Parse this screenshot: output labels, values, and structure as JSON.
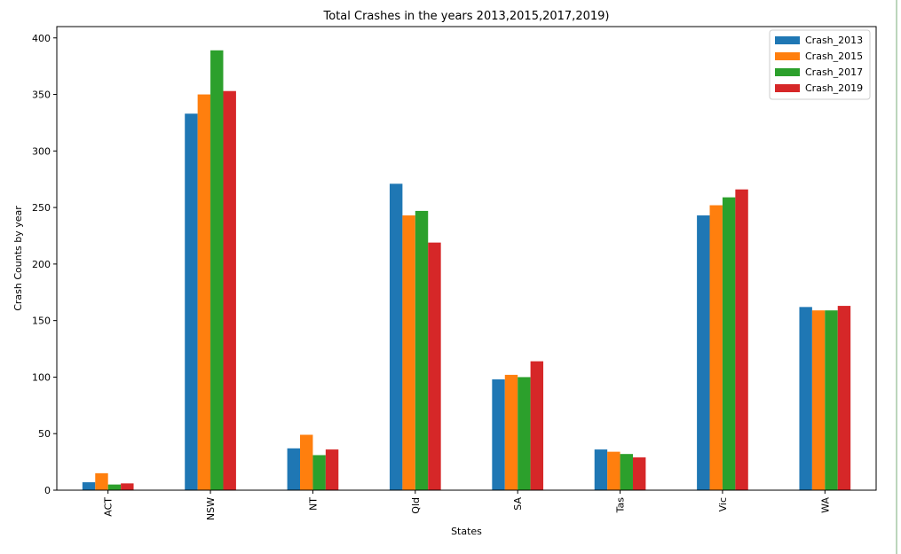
{
  "chart_data": {
    "type": "bar",
    "title": "Total Crashes in the years 2013,2015,2017,2019)",
    "xlabel": "States",
    "ylabel": "Crash Counts by year",
    "categories": [
      "ACT",
      "NSW",
      "NT",
      "Qld",
      "SA",
      "Tas",
      "Vic",
      "WA"
    ],
    "ylim": [
      0,
      410
    ],
    "yticks": [
      0,
      50,
      100,
      150,
      200,
      250,
      300,
      350,
      400
    ],
    "grid": false,
    "legend_position": "top-right",
    "series": [
      {
        "name": "Crash_2013",
        "color": "#1f77b4",
        "values": [
          7,
          333,
          37,
          271,
          98,
          36,
          243,
          162
        ]
      },
      {
        "name": "Crash_2015",
        "color": "#ff7f0e",
        "values": [
          15,
          350,
          49,
          243,
          102,
          34,
          252,
          159
        ]
      },
      {
        "name": "Crash_2017",
        "color": "#2ca02c",
        "values": [
          5,
          389,
          31,
          247,
          100,
          32,
          259,
          159
        ]
      },
      {
        "name": "Crash_2019",
        "color": "#d62728",
        "values": [
          6,
          353,
          36,
          219,
          114,
          29,
          266,
          163
        ]
      }
    ]
  }
}
